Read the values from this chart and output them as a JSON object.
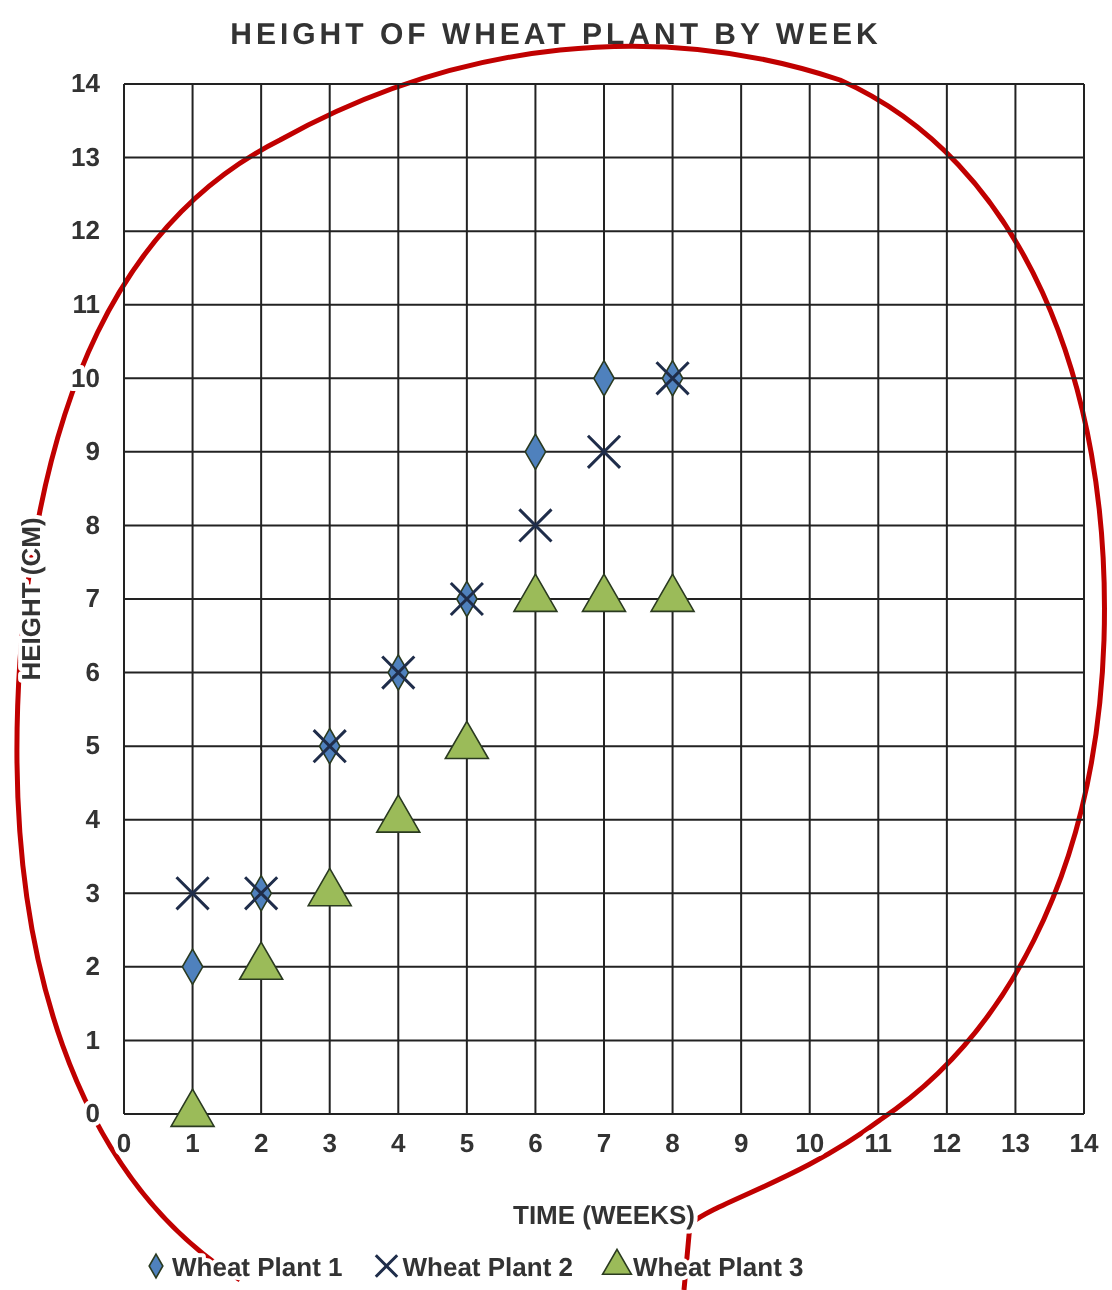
{
  "chart_data": {
    "type": "scatter",
    "title": "HEIGHT OF WHEAT PLANT BY WEEK",
    "xlabel": "TIME (WEEKS)",
    "ylabel": "HEIGHT (CM)",
    "x": [
      1,
      2,
      3,
      4,
      5,
      6,
      7,
      8
    ],
    "series": [
      {
        "name": "Wheat Plant 1",
        "color": "#4f81bd",
        "marker": "diamond",
        "values": [
          2,
          3,
          5,
          6,
          7,
          9,
          10,
          10
        ]
      },
      {
        "name": "Wheat Plant 2",
        "color": "#1f2d4a",
        "marker": "cross",
        "values": [
          3,
          3,
          5,
          6,
          7,
          8,
          9,
          10
        ]
      },
      {
        "name": "Wheat Plant 3",
        "color": "#9bbb59",
        "marker": "triangle",
        "values": [
          0,
          2,
          3,
          4,
          5,
          7,
          7,
          7
        ]
      }
    ],
    "xlim": [
      0,
      14
    ],
    "xticks": [
      0,
      1,
      2,
      3,
      4,
      5,
      6,
      7,
      8,
      9,
      10,
      11,
      12,
      13,
      14
    ],
    "ylim": [
      0,
      14
    ],
    "yticks": [
      0,
      1,
      2,
      3,
      4,
      5,
      6,
      7,
      8,
      9,
      10,
      11,
      12,
      13,
      14
    ],
    "grid": true,
    "legend": "bottom"
  }
}
